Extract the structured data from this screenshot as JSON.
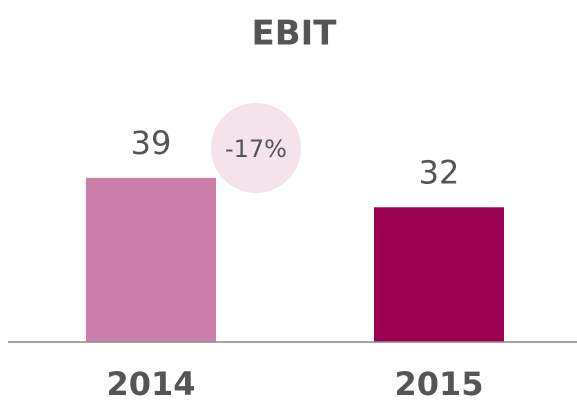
{
  "chart_data": {
    "type": "bar",
    "title": "EBIT",
    "categories": [
      "2014",
      "2015"
    ],
    "values": [
      39,
      32
    ],
    "colors": [
      "#cc7fab",
      "#9c0050"
    ],
    "annotation": "-17%",
    "annotation_color": "#f5e3ec"
  }
}
